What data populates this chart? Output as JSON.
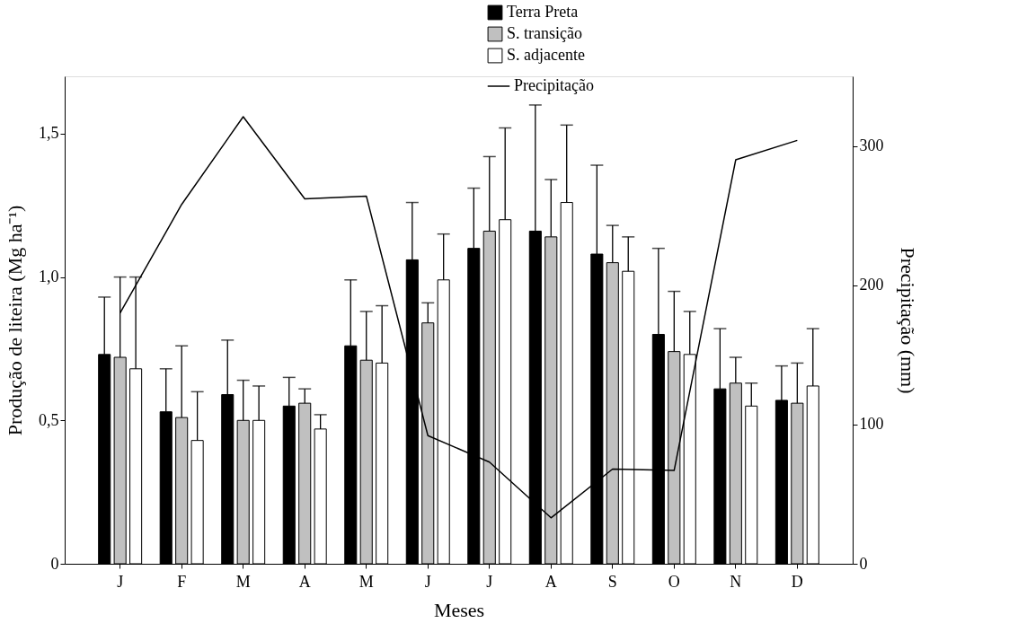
{
  "chart_data": {
    "type": "bar",
    "xlabel": "Meses",
    "ylabel": "Produção de liteira (Mg ha⁻¹)",
    "y2label": "Precipitação (mm)",
    "categories": [
      "J",
      "F",
      "M",
      "A",
      "M",
      "J",
      "J",
      "A",
      "S",
      "O",
      "N",
      "D"
    ],
    "series": [
      {
        "name": "Terra Preta",
        "color": "#000000",
        "values": [
          0.73,
          0.53,
          0.59,
          0.55,
          0.76,
          1.06,
          1.1,
          1.16,
          1.08,
          0.8,
          0.61,
          0.57
        ],
        "errors": [
          [
            0.73,
            0.93
          ],
          [
            0.53,
            0.68
          ],
          [
            0.59,
            0.78
          ],
          [
            0.55,
            0.65
          ],
          [
            0.76,
            0.99
          ],
          [
            1.06,
            1.26
          ],
          [
            1.1,
            1.31
          ],
          [
            1.16,
            1.6
          ],
          [
            1.08,
            1.39
          ],
          [
            0.8,
            1.1
          ],
          [
            0.61,
            0.82
          ],
          [
            0.57,
            0.69
          ]
        ]
      },
      {
        "name": "S. transição",
        "color": "#c0c0c0",
        "values": [
          0.72,
          0.51,
          0.5,
          0.56,
          0.71,
          0.84,
          1.16,
          1.14,
          1.05,
          0.74,
          0.63,
          0.56
        ],
        "errors": [
          [
            0.72,
            1.0
          ],
          [
            0.51,
            0.76
          ],
          [
            0.5,
            0.64
          ],
          [
            0.56,
            0.61
          ],
          [
            0.71,
            0.88
          ],
          [
            0.84,
            0.91
          ],
          [
            1.16,
            1.42
          ],
          [
            1.14,
            1.34
          ],
          [
            1.05,
            1.18
          ],
          [
            0.74,
            0.95
          ],
          [
            0.63,
            0.72
          ],
          [
            0.56,
            0.7
          ]
        ]
      },
      {
        "name": "S. adjacente",
        "color": "#ffffff",
        "values": [
          0.68,
          0.43,
          0.5,
          0.47,
          0.7,
          0.99,
          1.2,
          1.26,
          1.02,
          0.73,
          0.55,
          0.62
        ],
        "errors": [
          [
            0.68,
            1.0
          ],
          [
            0.43,
            0.6
          ],
          [
            0.5,
            0.62
          ],
          [
            0.47,
            0.52
          ],
          [
            0.7,
            0.9
          ],
          [
            0.99,
            1.15
          ],
          [
            1.2,
            1.52
          ],
          [
            1.26,
            1.53
          ],
          [
            1.02,
            1.14
          ],
          [
            0.73,
            0.88
          ],
          [
            0.55,
            0.63
          ],
          [
            0.62,
            0.82
          ]
        ]
      },
      {
        "name": "Precipitação",
        "type": "line",
        "axis": "y2",
        "color": "#000000",
        "values": [
          180,
          258,
          321,
          262,
          264,
          92,
          73,
          33,
          68,
          67,
          290,
          304
        ]
      }
    ],
    "ylim": [
      0,
      1.7
    ],
    "yticks": [
      {
        "value": 0,
        "label": "0"
      },
      {
        "value": 0.5,
        "label": "0,5"
      },
      {
        "value": 1.0,
        "label": "1,0"
      },
      {
        "value": 1.5,
        "label": "1,5"
      }
    ],
    "y2lim": [
      0,
      350
    ],
    "y2ticks": [
      0,
      100,
      200,
      300
    ],
    "grid": false,
    "legend": "top right",
    "line_style": "solid",
    "marker": "none"
  }
}
